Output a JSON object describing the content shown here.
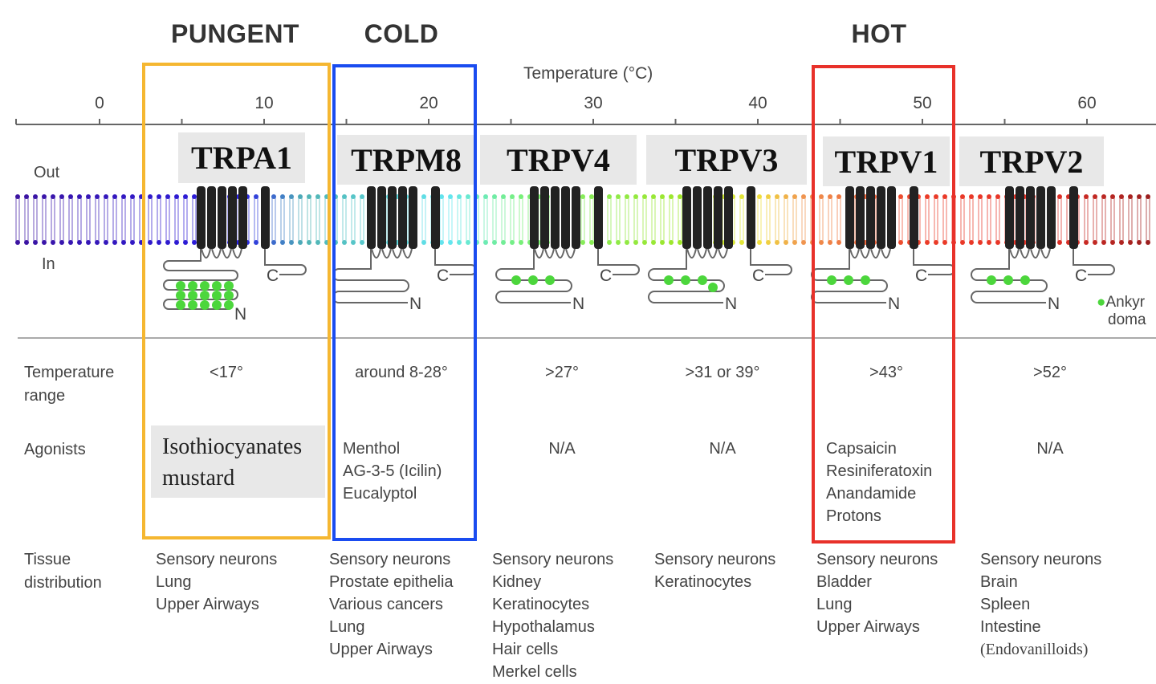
{
  "categories": {
    "pungent": {
      "label": "PUNGENT",
      "color": "#f5b731"
    },
    "cold": {
      "label": "COLD",
      "color": "#1a4cf0"
    },
    "hot": {
      "label": "HOT",
      "color": "#e8312a"
    }
  },
  "axis": {
    "title": "Temperature (°C)",
    "ticks": [
      "0",
      "10",
      "20",
      "30",
      "40",
      "50",
      "60"
    ]
  },
  "membrane": {
    "out_label": "Out",
    "in_label": "In"
  },
  "legend": {
    "line1": "Ankyr",
    "line2": "doma",
    "color": "#4cd63c"
  },
  "row_labels": {
    "temperature": "Temperature range",
    "agonists": "Agonists",
    "tissue": "Tissue distribution"
  },
  "channels": [
    {
      "name": "TRPA1",
      "temp": "<17°",
      "agonists": [
        "Isothiocyanates",
        "mustard"
      ],
      "tissue": [
        "Sensory neurons",
        "Lung",
        "Upper Airways"
      ],
      "ankyrin": 15
    },
    {
      "name": "TRPM8",
      "temp": "around 8-28°",
      "agonists": [
        "Menthol",
        "AG-3-5 (Icilin)",
        "Eucalyptol"
      ],
      "tissue": [
        "Sensory neurons",
        "Prostate epithelia",
        "Various cancers",
        "Lung",
        "Upper Airways"
      ],
      "ankyrin": 0
    },
    {
      "name": "TRPV4",
      "temp": ">27°",
      "agonists": [
        "N/A"
      ],
      "tissue": [
        "Sensory neurons",
        "Kidney",
        "Keratinocytes",
        "Hypothalamus",
        "Hair cells",
        "Merkel cells"
      ],
      "ankyrin": 3
    },
    {
      "name": "TRPV3",
      "temp": ">31 or 39°",
      "agonists": [
        "N/A"
      ],
      "tissue": [
        "Sensory neurons",
        "Keratinocytes"
      ],
      "ankyrin": 4
    },
    {
      "name": "TRPV1",
      "temp": ">43°",
      "agonists": [
        "Capsaicin",
        "Resiniferatoxin",
        "Anandamide",
        "Protons"
      ],
      "tissue": [
        "Sensory neurons",
        "Bladder",
        "Lung",
        "Upper Airways"
      ],
      "ankyrin": 3
    },
    {
      "name": "TRPV2",
      "temp": ">52°",
      "agonists": [
        "N/A"
      ],
      "tissue": [
        "Sensory neurons",
        "Brain",
        "Spleen",
        "Intestine",
        "(Endovanilloids)"
      ],
      "ankyrin": 3
    }
  ]
}
